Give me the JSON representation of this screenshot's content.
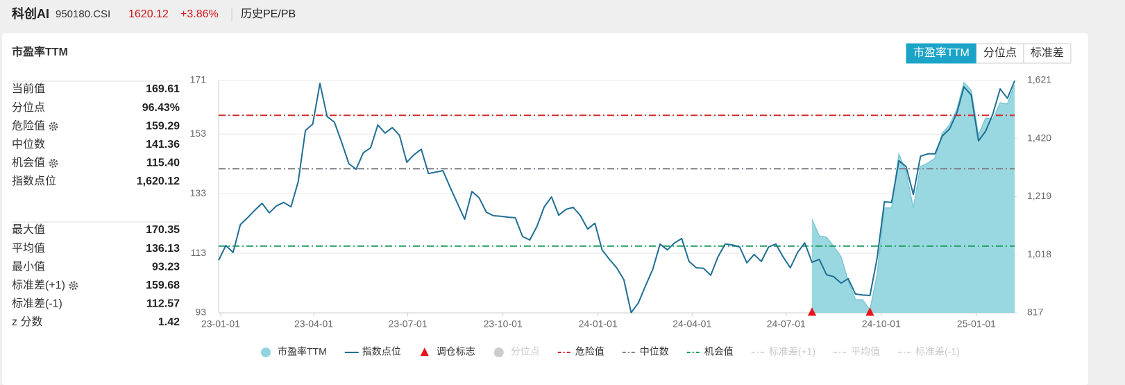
{
  "header": {
    "name": "科创AI",
    "code": "950180.CSI",
    "price": 1620.12,
    "change": "+3.86%",
    "tab": "历史PE/PB"
  },
  "toggles": {
    "items": [
      "市盈率TTM",
      "分位点",
      "标准差"
    ],
    "active": 0
  },
  "chart_data": {
    "type": "line",
    "title": "市盈率TTM",
    "stats": [
      [
        {
          "name": "当前值",
          "value": 169.61
        },
        {
          "name": "分位点",
          "value": 96.43,
          "label": "96.43%"
        },
        {
          "name": "危险值",
          "value": 159.29,
          "setting": true
        },
        {
          "name": "中位数",
          "value": 141.36
        },
        {
          "name": "机会值",
          "value": 115.4,
          "label": "115.40",
          "setting": true
        },
        {
          "name": "指数点位",
          "value": 1620.12,
          "label": "1,620.12"
        }
      ],
      [
        {
          "name": "最大值",
          "value": 170.35
        },
        {
          "name": "平均值",
          "value": 136.13
        },
        {
          "name": "最小值",
          "value": 93.23
        },
        {
          "name": "标准差(+1)",
          "value": 159.68,
          "setting": true
        },
        {
          "name": "标准差(-1)",
          "value": 112.57
        },
        {
          "name": "z 分数",
          "value": 1.42
        }
      ]
    ],
    "x": [
      "22-12-30",
      "23-01-06",
      "23-01-13",
      "23-01-20",
      "23-01-27",
      "23-02-03",
      "23-02-10",
      "23-02-17",
      "23-02-24",
      "23-03-03",
      "23-03-10",
      "23-03-17",
      "23-03-24",
      "23-03-31",
      "23-04-07",
      "23-04-14",
      "23-04-21",
      "23-04-28",
      "23-05-05",
      "23-05-12",
      "23-05-19",
      "23-05-26",
      "23-06-02",
      "23-06-09",
      "23-06-16",
      "23-06-23",
      "23-06-30",
      "23-07-07",
      "23-07-14",
      "23-07-21",
      "23-07-28",
      "23-08-04",
      "23-08-11",
      "23-08-18",
      "23-08-25",
      "23-09-01",
      "23-09-08",
      "23-09-15",
      "23-09-22",
      "23-09-29",
      "23-10-06",
      "23-10-13",
      "23-10-20",
      "23-10-27",
      "23-11-03",
      "23-11-10",
      "23-11-17",
      "23-11-24",
      "23-12-01",
      "23-12-08",
      "23-12-15",
      "23-12-22",
      "23-12-29",
      "24-01-05",
      "24-01-12",
      "24-01-19",
      "24-01-26",
      "24-02-02",
      "24-02-09",
      "24-02-16",
      "24-02-23",
      "24-03-01",
      "24-03-08",
      "24-03-15",
      "24-03-22",
      "24-03-29",
      "24-04-05",
      "24-04-12",
      "24-04-19",
      "24-04-26",
      "24-05-03",
      "24-05-10",
      "24-05-17",
      "24-05-24",
      "24-05-31",
      "24-06-07",
      "24-06-14",
      "24-06-21",
      "24-06-28",
      "24-07-05",
      "24-07-12",
      "24-07-19",
      "24-07-26",
      "24-08-02",
      "24-08-09",
      "24-08-16",
      "24-08-23",
      "24-08-30",
      "24-09-06",
      "24-09-13",
      "24-09-20",
      "24-09-27",
      "24-10-04",
      "24-10-11",
      "24-10-18",
      "24-10-25",
      "24-11-01",
      "24-11-08",
      "24-11-15",
      "24-11-22",
      "24-11-29",
      "24-12-06",
      "24-12-13",
      "24-12-20",
      "24-12-27",
      "25-01-03",
      "25-01-10",
      "25-01-17",
      "25-01-24",
      "25-01-31",
      "25-02-07"
    ],
    "series": [
      {
        "name": "市盈率TTM",
        "color": "#8fd4de",
        "line_color": "#7cc7d3",
        "area": true,
        "values": [
          null,
          null,
          null,
          null,
          null,
          null,
          null,
          null,
          null,
          null,
          null,
          null,
          null,
          null,
          null,
          null,
          null,
          null,
          null,
          null,
          null,
          null,
          null,
          null,
          null,
          null,
          null,
          null,
          null,
          null,
          null,
          null,
          null,
          null,
          null,
          null,
          null,
          null,
          null,
          null,
          null,
          null,
          null,
          null,
          null,
          null,
          null,
          null,
          null,
          null,
          null,
          null,
          null,
          null,
          null,
          null,
          null,
          null,
          null,
          null,
          null,
          null,
          null,
          null,
          null,
          null,
          null,
          null,
          null,
          null,
          null,
          null,
          null,
          null,
          null,
          null,
          null,
          null,
          null,
          null,
          null,
          null,
          124.4,
          118.8,
          118.4,
          115.3,
          111.9,
          103.7,
          97.4,
          97.4,
          93.9,
          106.0,
          128.2,
          128.2,
          146.3,
          140.3,
          128.2,
          142.1,
          143.3,
          144.9,
          153.3,
          156.1,
          161.2,
          170.3,
          167.7,
          152.6,
          158.4,
          158.0,
          163.5,
          163.1,
          169.61
        ]
      },
      {
        "name": "指数点位",
        "color": "#1f6e94",
        "axis": "y2",
        "values": [
          999,
          1050,
          1026,
          1122,
          1146,
          1172,
          1196,
          1163,
          1187,
          1199,
          1184,
          1271,
          1448,
          1470,
          1611,
          1496,
          1477,
          1407,
          1333,
          1314,
          1371,
          1388,
          1467,
          1439,
          1458,
          1431,
          1338,
          1364,
          1383,
          1299,
          1304,
          1309,
          1251,
          1196,
          1141,
          1237,
          1215,
          1165,
          1153,
          1151,
          1148,
          1146,
          1081,
          1069,
          1117,
          1184,
          1218,
          1155,
          1175,
          1182,
          1153,
          1107,
          1127,
          1035,
          1002,
          973,
          932,
          818,
          851,
          911,
          968,
          1055,
          1035,
          1059,
          1074,
          995,
          973,
          971,
          947,
          1011,
          1055,
          1052,
          1045,
          990,
          1019,
          995,
          1045,
          1055,
          1011,
          973,
          1026,
          1059,
          992,
          1002,
          949,
          942,
          920,
          935,
          882,
          879,
          877,
          1007,
          1201,
          1199,
          1343,
          1323,
          1227,
          1359,
          1367,
          1367,
          1429,
          1453,
          1508,
          1599,
          1571,
          1412,
          1446,
          1506,
          1592,
          1559,
          1620
        ]
      }
    ],
    "markers": {
      "name": "调仓标志",
      "color": "#e8141b",
      "x": [
        "24-07-26",
        "24-09-20"
      ]
    },
    "hidden_series": [
      {
        "name": "分位点",
        "color": "#cccccc"
      }
    ],
    "reference_lines": [
      {
        "name": "危险值",
        "color": "#d42a2a",
        "visible": true
      },
      {
        "name": "中位数",
        "color": "#7d7d86",
        "visible": true
      },
      {
        "name": "机会值",
        "color": "#1d9b5c",
        "visible": true
      },
      {
        "name": "标准差(+1)",
        "color": "#d9d9d9",
        "visible": false
      },
      {
        "name": "平均值",
        "color": "#d9d9d9",
        "visible": false
      },
      {
        "name": "标准差(-1)",
        "color": "#d9d9d9",
        "visible": false
      }
    ],
    "xlim": [
      "22-12-30",
      "25-02-07"
    ],
    "xticks": [
      "23-01-01",
      "23-04-01",
      "23-07-01",
      "23-10-01",
      "24-01-01",
      "24-04-01",
      "24-07-01",
      "24-10-01",
      "25-01-01"
    ],
    "ylim": [
      93,
      171
    ],
    "yticks": [
      93,
      113,
      133,
      153,
      171
    ],
    "y2lim": [
      817,
      1621
    ],
    "y2ticks": [
      817,
      {
        "value": 1018,
        "label": "1,018"
      },
      {
        "value": 1219,
        "label": "1,219"
      },
      {
        "value": 1420,
        "label": "1,420"
      },
      {
        "value": 1621,
        "label": "1,621"
      }
    ],
    "grid": true
  }
}
